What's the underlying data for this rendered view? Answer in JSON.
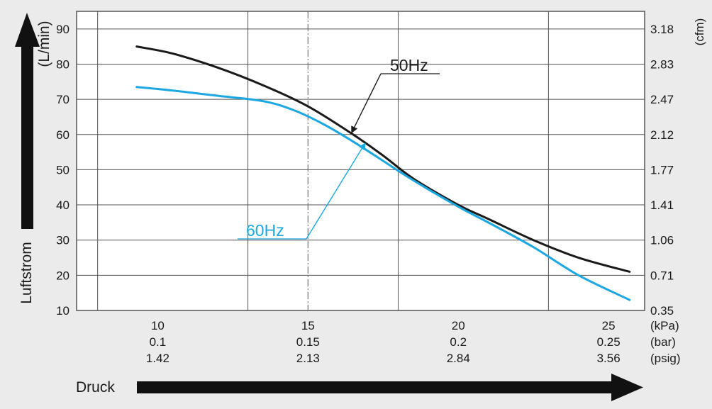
{
  "chart_data": {
    "type": "line",
    "title": "",
    "xlabel": "Druck",
    "ylabel": "Luftstrom",
    "xlim": [
      7.3,
      26.2
    ],
    "ylim": [
      10,
      95
    ],
    "grid": true,
    "x_unit_labels": [
      "(kPa)",
      "(bar)",
      "(psig)"
    ],
    "x_ticks": [
      {
        "value": 10,
        "kpa": "10",
        "bar": "0.1",
        "psig": "1.42"
      },
      {
        "value": 15,
        "kpa": "15",
        "bar": "0.15",
        "psig": "2.13"
      },
      {
        "value": 20,
        "kpa": "20",
        "bar": "0.2",
        "psig": "2.84"
      },
      {
        "value": 25,
        "kpa": "25",
        "bar": "0.25",
        "psig": "3.56"
      }
    ],
    "y_left_unit": "(L/min)",
    "y_left_ticks": [
      {
        "value": 10,
        "label": "10"
      },
      {
        "value": 20,
        "label": "20"
      },
      {
        "value": 30,
        "label": "30"
      },
      {
        "value": 40,
        "label": "40"
      },
      {
        "value": 50,
        "label": "50"
      },
      {
        "value": 60,
        "label": "60"
      },
      {
        "value": 70,
        "label": "70"
      },
      {
        "value": 80,
        "label": "80"
      },
      {
        "value": 90,
        "label": "90"
      }
    ],
    "y_right_unit": "(cfm)",
    "y_right_ticks": [
      {
        "value": 10,
        "label": "0.35"
      },
      {
        "value": 20,
        "label": "0.71"
      },
      {
        "value": 30,
        "label": "1.06"
      },
      {
        "value": 40,
        "label": "1.41"
      },
      {
        "value": 50,
        "label": "1.77"
      },
      {
        "value": 60,
        "label": "2.12"
      },
      {
        "value": 70,
        "label": "2.47"
      },
      {
        "value": 80,
        "label": "2.83"
      },
      {
        "value": 90,
        "label": "3.18"
      }
    ],
    "x_gridlines": [
      8,
      13,
      18,
      23
    ],
    "reference_line": {
      "x": 15
    },
    "series": [
      {
        "name": "50Hz",
        "color": "#1a1a1a",
        "points": [
          [
            9.3,
            85
          ],
          [
            10.5,
            83
          ],
          [
            12,
            79
          ],
          [
            13.5,
            74
          ],
          [
            15,
            68
          ],
          [
            16.5,
            60
          ],
          [
            17.5,
            54
          ],
          [
            18.5,
            47.5
          ],
          [
            20,
            40
          ],
          [
            21,
            36
          ],
          [
            22.5,
            30
          ],
          [
            24,
            25
          ],
          [
            25.7,
            21
          ]
        ]
      },
      {
        "name": "60Hz",
        "color": "#1ba7e1",
        "points": [
          [
            9.3,
            73.5
          ],
          [
            10.5,
            72.5
          ],
          [
            12,
            71
          ],
          [
            13.5,
            69.5
          ],
          [
            14.5,
            67
          ],
          [
            15.5,
            63
          ],
          [
            16.5,
            58
          ],
          [
            17.5,
            52.5
          ],
          [
            18.5,
            47
          ],
          [
            20,
            39.5
          ],
          [
            21,
            35
          ],
          [
            22.5,
            28
          ],
          [
            24,
            20
          ],
          [
            25.7,
            13
          ]
        ]
      }
    ],
    "annotations": [
      {
        "text": "50Hz",
        "series": 0,
        "color": "#1a1a1a",
        "points_to": [
          16.45,
          60.5
        ]
      },
      {
        "text": "60Hz",
        "series": 1,
        "color": "#1ba7e1",
        "points_to": [
          16.9,
          57.5
        ]
      }
    ]
  }
}
